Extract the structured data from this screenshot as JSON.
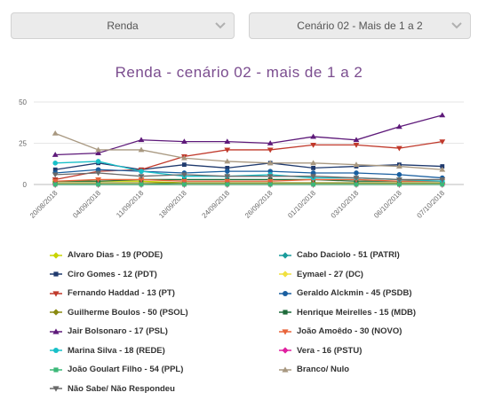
{
  "dropdowns": {
    "renda": "Renda",
    "cenario": "Cenário 02 - Mais de 1 a 2"
  },
  "chart_data": {
    "type": "line",
    "title": "Renda - cenário 02 - mais de 1 a 2",
    "xlabel": "",
    "ylabel": "",
    "ylim": [
      0,
      50
    ],
    "yticks": [
      0,
      25,
      50
    ],
    "grid": true,
    "legend_position": "bottom",
    "x": [
      "20/08/2018",
      "04/09/2018",
      "11/09/2018",
      "18/09/2018",
      "24/09/2018",
      "26/09/2018",
      "01/10/2018",
      "03/10/2018",
      "06/10/2018",
      "07/10/2018"
    ],
    "series": [
      {
        "name": "Alvaro Dias - 19 (PODE)",
        "color": "#c8d400",
        "marker": "diamond",
        "values": [
          2,
          2,
          2,
          1,
          1,
          1,
          1,
          1,
          1,
          1
        ]
      },
      {
        "name": "Cabo Daciolo - 51 (PATRI)",
        "color": "#1a9c9c",
        "marker": "diamond",
        "values": [
          0,
          0,
          0,
          1,
          1,
          1,
          1,
          1,
          1,
          1
        ]
      },
      {
        "name": "Ciro Gomes - 12 (PDT)",
        "color": "#1f3a6e",
        "marker": "square",
        "values": [
          9,
          13,
          9,
          12,
          10,
          13,
          10,
          11,
          12,
          11
        ]
      },
      {
        "name": "Eymael - 27 (DC)",
        "color": "#f0e040",
        "marker": "diamond",
        "values": [
          0,
          0,
          0,
          0,
          0,
          0,
          0,
          0,
          0,
          0
        ]
      },
      {
        "name": "Fernando Haddad - 13 (PT)",
        "color": "#c0392b",
        "marker": "triangle-down",
        "values": [
          3,
          8,
          9,
          17,
          21,
          21,
          24,
          24,
          22,
          26
        ]
      },
      {
        "name": "Geraldo Alckmin - 45 (PSDB)",
        "color": "#1a5fa0",
        "marker": "circle",
        "values": [
          7,
          9,
          8,
          7,
          8,
          8,
          7,
          7,
          6,
          4
        ]
      },
      {
        "name": "Guilherme Boulos - 50 (PSOL)",
        "color": "#8a8a10",
        "marker": "diamond",
        "values": [
          1,
          1,
          1,
          1,
          1,
          1,
          1,
          1,
          1,
          1
        ]
      },
      {
        "name": "Henrique Meirelles - 15 (MDB)",
        "color": "#1e6b3a",
        "marker": "square",
        "values": [
          2,
          2,
          3,
          3,
          3,
          3,
          3,
          2,
          2,
          2
        ]
      },
      {
        "name": "Jair Bolsonaro - 17 (PSL)",
        "color": "#5e1a7a",
        "marker": "triangle-up",
        "values": [
          18,
          19,
          27,
          26,
          26,
          25,
          29,
          27,
          35,
          42
        ]
      },
      {
        "name": "João Amoêdo - 30 (NOVO)",
        "color": "#e8643a",
        "marker": "triangle-down",
        "values": [
          2,
          3,
          3,
          2,
          2,
          2,
          3,
          3,
          2,
          2
        ]
      },
      {
        "name": "Marina Silva - 18 (REDE)",
        "color": "#18c0c8",
        "marker": "circle",
        "values": [
          13,
          14,
          8,
          5,
          5,
          6,
          4,
          4,
          3,
          2
        ]
      },
      {
        "name": "Vera - 16 (PSTU)",
        "color": "#e020a0",
        "marker": "diamond",
        "values": [
          0,
          0,
          0,
          0,
          0,
          0,
          0,
          0,
          0,
          0
        ]
      },
      {
        "name": "João Goulart Filho - 54 (PPL)",
        "color": "#3cb878",
        "marker": "square",
        "values": [
          0,
          0,
          0,
          0,
          0,
          0,
          0,
          0,
          0,
          0
        ]
      },
      {
        "name": "Branco/ Nulo",
        "color": "#a89880",
        "marker": "triangle-up",
        "values": [
          31,
          21,
          21,
          16,
          14,
          13,
          13,
          12,
          11,
          9
        ]
      },
      {
        "name": "Não Sabe/ Não Respondeu",
        "color": "#6a6a6a",
        "marker": "triangle-down",
        "values": [
          6,
          7,
          5,
          6,
          5,
          5,
          5,
          4,
          3,
          3
        ]
      }
    ]
  }
}
